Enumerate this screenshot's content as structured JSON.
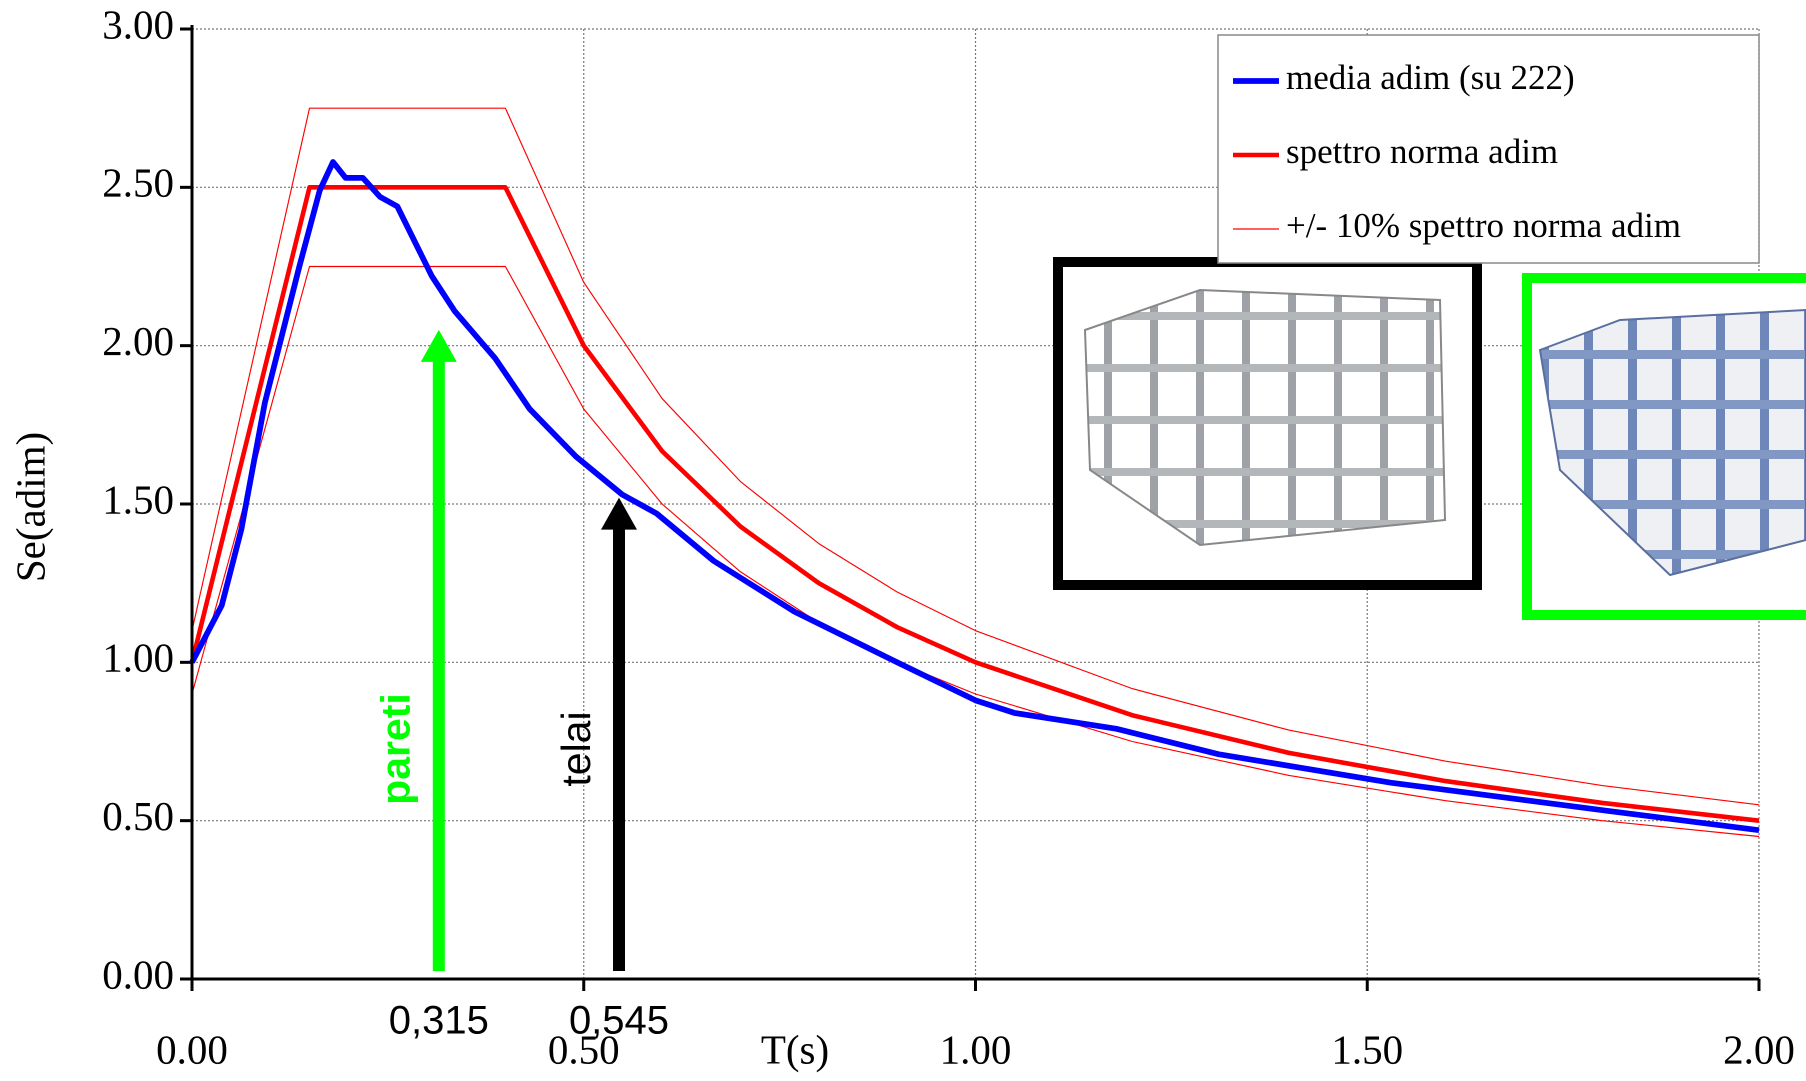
{
  "chart_data": {
    "type": "line",
    "xlabel": "T(s)",
    "ylabel": "Se(adim)",
    "xlim": [
      0,
      2
    ],
    "ylim": [
      0,
      3
    ],
    "xticks": [
      {
        "value": 0,
        "label": "0.00"
      },
      {
        "value": 0.5,
        "label": "0.50"
      },
      {
        "value": 1,
        "label": "1.00"
      },
      {
        "value": 1.5,
        "label": "1.50"
      },
      {
        "value": 2,
        "label": "2.00"
      }
    ],
    "yticks": [
      {
        "value": 0,
        "label": "0.00"
      },
      {
        "value": 0.5,
        "label": "0.50"
      },
      {
        "value": 1,
        "label": "1.00"
      },
      {
        "value": 1.5,
        "label": "1.50"
      },
      {
        "value": 2,
        "label": "2.00"
      },
      {
        "value": 2.5,
        "label": "2.50"
      },
      {
        "value": 3,
        "label": "3.00"
      }
    ],
    "grid": true,
    "legend": "upper right",
    "series": [
      {
        "name": "media adim (su 222)",
        "color": "#0000ff",
        "width": 5,
        "x": [
          0,
          0.038,
          0.063,
          0.093,
          0.137,
          0.163,
          0.18,
          0.196,
          0.218,
          0.24,
          0.262,
          0.284,
          0.306,
          0.335,
          0.387,
          0.431,
          0.49,
          0.549,
          0.593,
          0.666,
          0.769,
          0.9,
          1.0,
          1.05,
          1.18,
          1.31,
          1.53,
          1.81,
          2.0
        ],
        "values": [
          1.0,
          1.18,
          1.42,
          1.82,
          2.25,
          2.49,
          2.58,
          2.53,
          2.53,
          2.47,
          2.44,
          2.33,
          2.22,
          2.11,
          1.96,
          1.8,
          1.65,
          1.53,
          1.47,
          1.32,
          1.16,
          1.0,
          0.88,
          0.84,
          0.79,
          0.71,
          0.62,
          0.53,
          0.47
        ]
      },
      {
        "name": "spettro norma adim",
        "color": "#ff0000",
        "width": 4,
        "x": [
          0,
          0.15,
          0.4,
          0.5,
          0.6,
          0.7,
          0.8,
          0.9,
          1.0,
          1.2,
          1.4,
          1.6,
          1.8,
          2.0
        ],
        "values": [
          1.0,
          2.5,
          2.5,
          2.0,
          1.667,
          1.429,
          1.25,
          1.111,
          1.0,
          0.833,
          0.714,
          0.625,
          0.556,
          0.5
        ]
      },
      {
        "name": "+/- 10% spettro norma adim",
        "color": "#ff0000",
        "width": 1,
        "x": [
          0,
          0.15,
          0.4,
          0.5,
          0.6,
          0.7,
          0.8,
          0.9,
          1.0,
          1.2,
          1.4,
          1.6,
          1.8,
          2.0
        ],
        "values": [
          1.1,
          2.75,
          2.75,
          2.2,
          1.833,
          1.571,
          1.375,
          1.222,
          1.1,
          0.917,
          0.786,
          0.688,
          0.611,
          0.55
        ]
      },
      {
        "color": "#ff0000",
        "width": 1,
        "x": [
          0,
          0.15,
          0.4,
          0.5,
          0.6,
          0.7,
          0.8,
          0.9,
          1.0,
          1.2,
          1.4,
          1.6,
          1.8,
          2.0
        ],
        "values": [
          0.9,
          2.25,
          2.25,
          1.8,
          1.5,
          1.286,
          1.125,
          1.0,
          0.9,
          0.75,
          0.643,
          0.563,
          0.5,
          0.45
        ]
      }
    ],
    "annotations": [
      {
        "text": "pareti",
        "x": 0.315,
        "x_label": "0,315",
        "y": 2.05,
        "color": "#00ff00",
        "bold": true
      },
      {
        "text": "telai",
        "x": 0.545,
        "x_label": "0,545",
        "y": 1.52,
        "color": "#000000",
        "bold": false
      }
    ]
  }
}
